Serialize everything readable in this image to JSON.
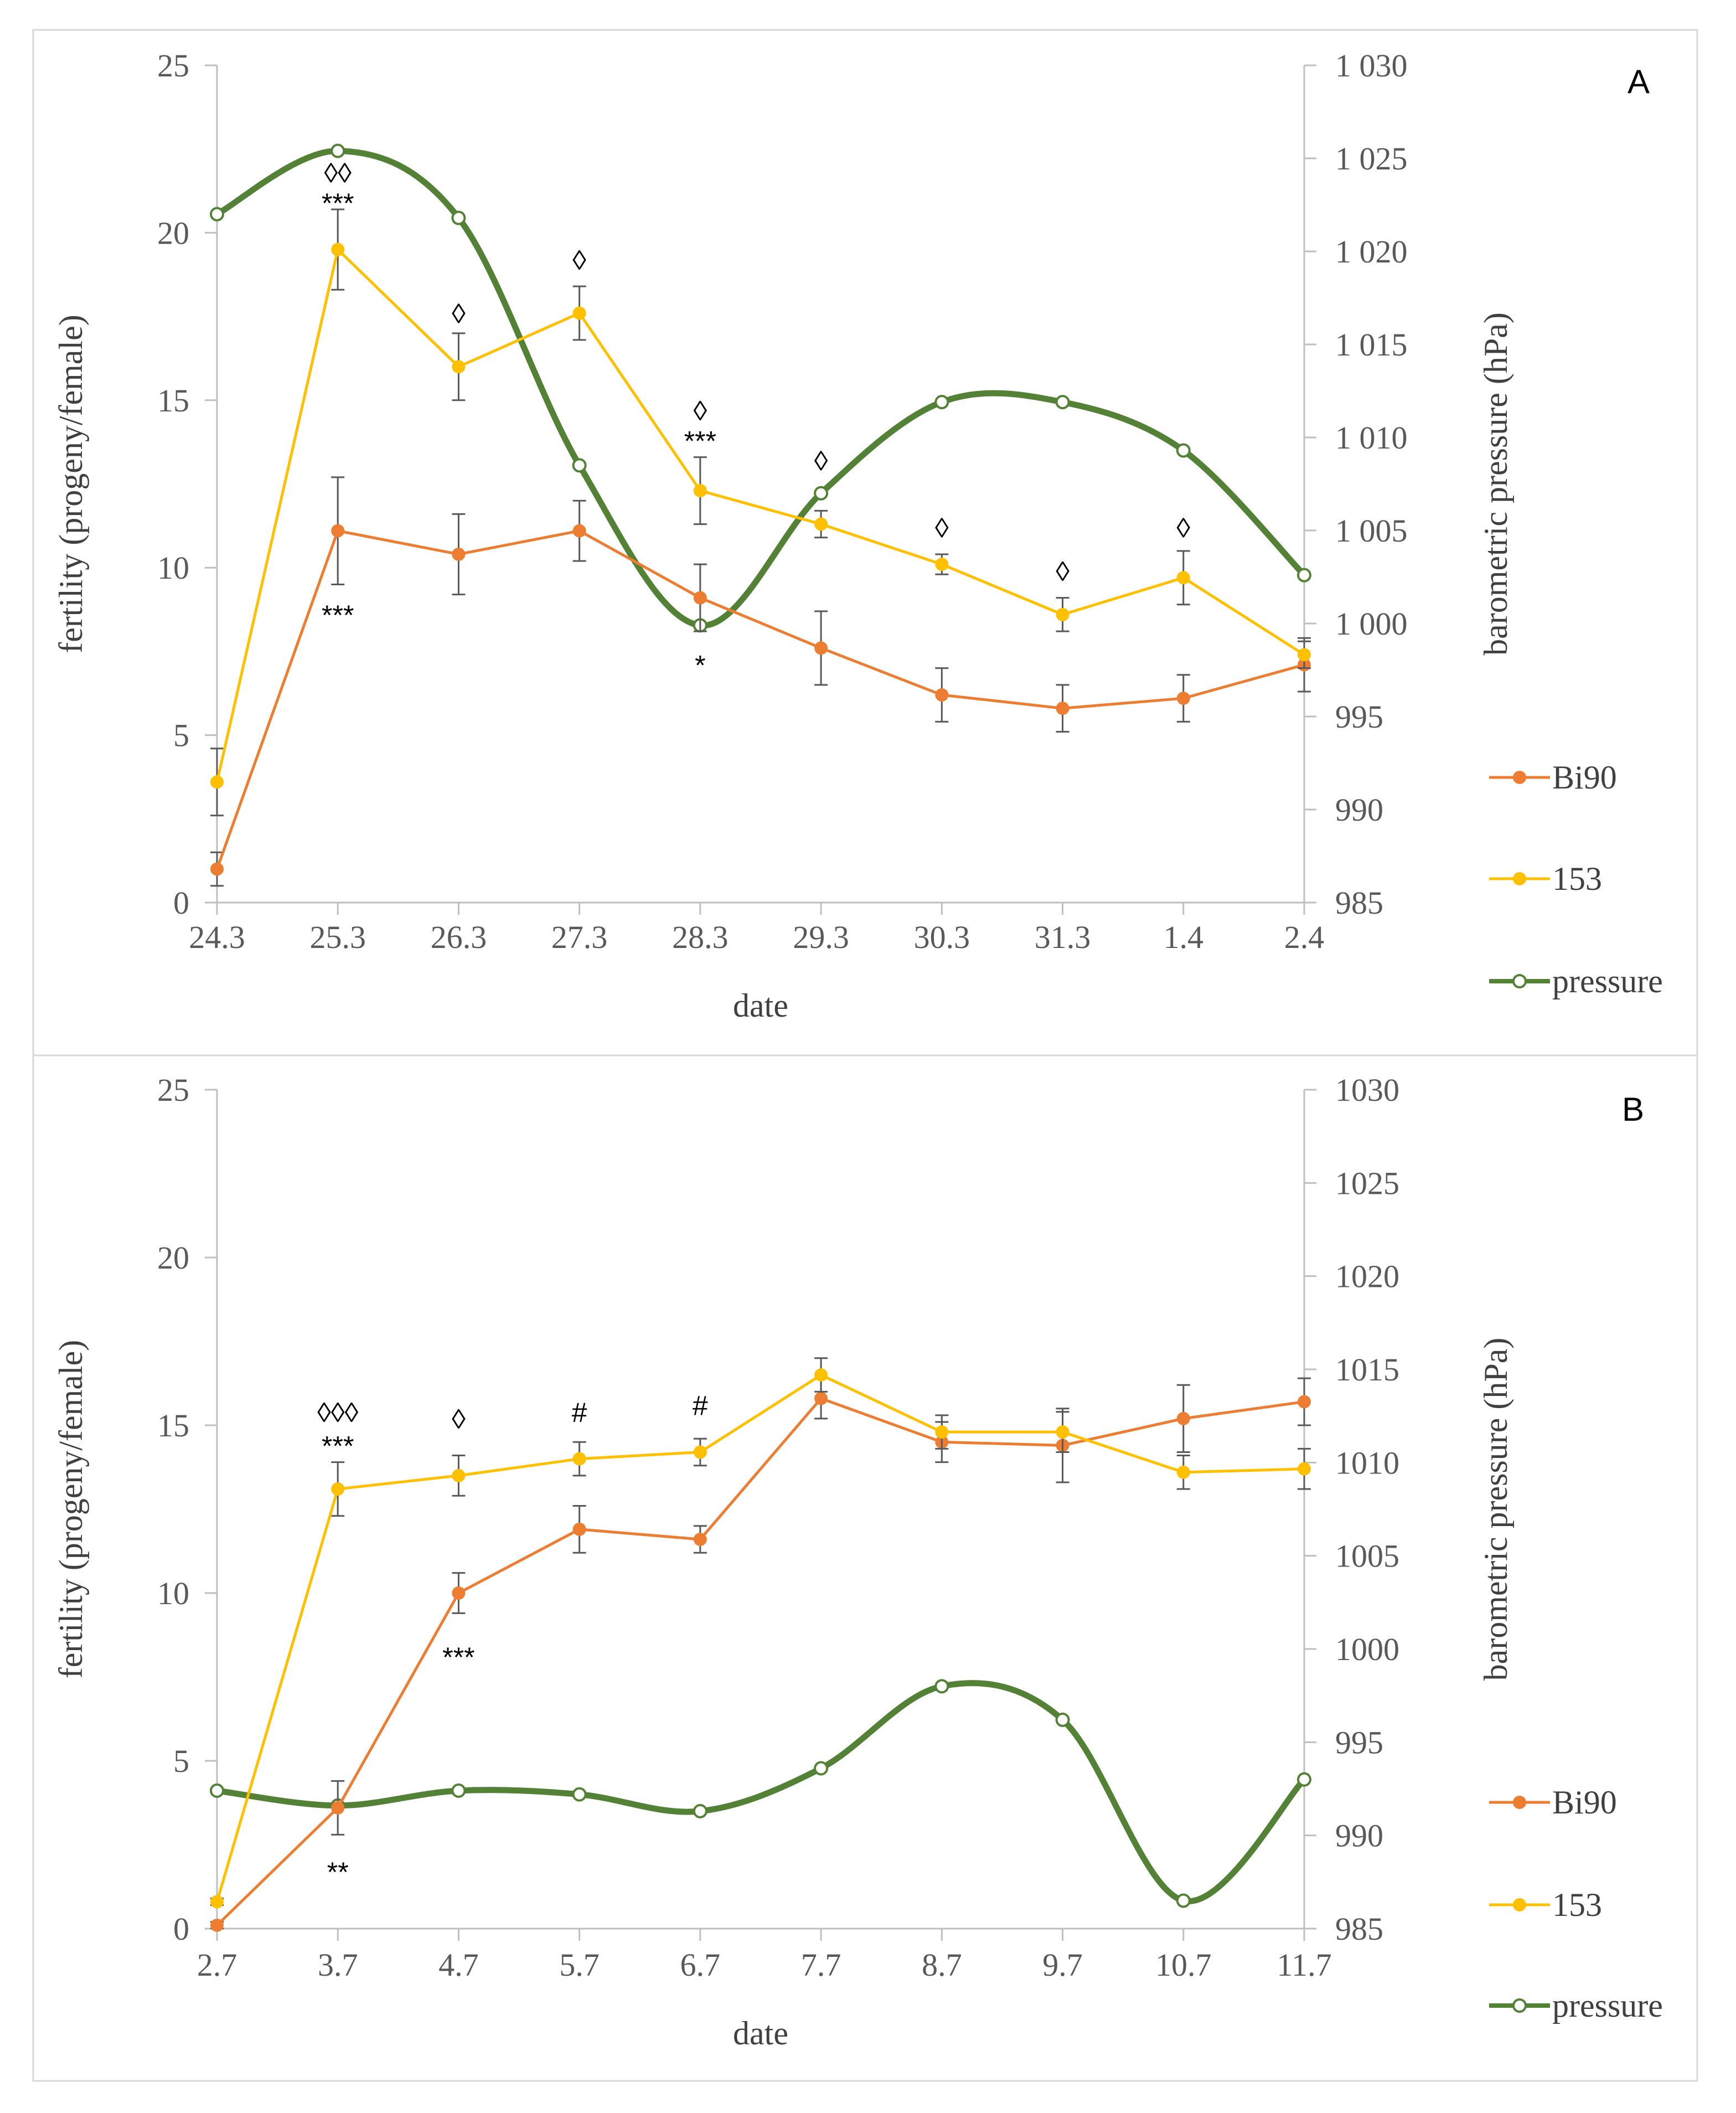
{
  "colors": {
    "bi90": "#ED7D31",
    "line153": "#FFC000",
    "pressure": "#538135",
    "axis": "#BFBFBF",
    "errbar": "#595959"
  },
  "chart_data": [
    {
      "type": "line",
      "panel_label": "A",
      "xlabel": "date",
      "ylabel": "fertility (progeny/female)",
      "ylabel2": "barometric  pressure (hPa)",
      "categories": [
        "24.3",
        "25.3",
        "26.3",
        "27.3",
        "28.3",
        "29.3",
        "30.3",
        "31.3",
        "1.4",
        "2.4"
      ],
      "ylim": [
        0,
        25
      ],
      "yticks": [
        "0",
        "5",
        "10",
        "15",
        "20",
        "25"
      ],
      "y2lim": [
        985,
        1030
      ],
      "y2ticks": [
        "985",
        "990",
        "995",
        "1 000",
        "1 005",
        "1 010",
        "1 015",
        "1 020",
        "1 025",
        "1 030"
      ],
      "legend_position": "right",
      "series": [
        {
          "name": "Bi90",
          "axis": "left",
          "values": [
            1.0,
            11.1,
            10.4,
            11.1,
            9.1,
            7.6,
            6.2,
            5.8,
            6.1,
            7.1
          ],
          "errors": [
            0.5,
            1.6,
            1.2,
            0.9,
            1.0,
            1.1,
            0.8,
            0.7,
            0.7,
            0.8
          ]
        },
        {
          "name": "153",
          "axis": "left",
          "values": [
            3.6,
            19.5,
            16.0,
            17.6,
            12.3,
            11.3,
            10.1,
            8.6,
            9.7,
            7.4
          ],
          "errors": [
            1.0,
            1.2,
            1.0,
            0.8,
            1.0,
            0.4,
            0.3,
            0.5,
            0.8,
            0.4
          ]
        },
        {
          "name": "pressure",
          "axis": "right",
          "smooth": true,
          "values": [
            1022.0,
            1025.4,
            1021.8,
            1008.5,
            999.9,
            1007.0,
            1011.9,
            1011.9,
            1009.3,
            1002.6
          ],
          "errors": []
        }
      ],
      "annotations": [
        {
          "text": "◊◊",
          "x": "25.3",
          "y": 21.8
        },
        {
          "text": "***",
          "x": "25.3",
          "y": 20.9
        },
        {
          "text": "***",
          "x": "25.3",
          "y": 8.6
        },
        {
          "text": "◊",
          "x": "26.3",
          "y": 17.6
        },
        {
          "text": "◊",
          "x": "27.3",
          "y": 19.2
        },
        {
          "text": "◊",
          "x": "28.3",
          "y": 14.7
        },
        {
          "text": "***",
          "x": "28.3",
          "y": 13.8
        },
        {
          "text": "*",
          "x": "28.3",
          "y": 7.1
        },
        {
          "text": "◊",
          "x": "29.3",
          "y": 13.2
        },
        {
          "text": "◊",
          "x": "30.3",
          "y": 11.2
        },
        {
          "text": "◊",
          "x": "31.3",
          "y": 9.9
        },
        {
          "text": "◊",
          "x": "1.4",
          "y": 11.2
        }
      ]
    },
    {
      "type": "line",
      "panel_label": "B",
      "xlabel": "date",
      "ylabel": "fertility (progeny/female)",
      "ylabel2": "barometric  pressure (hPa)",
      "categories": [
        "2.7",
        "3.7",
        "4.7",
        "5.7",
        "6.7",
        "7.7",
        "8.7",
        "9.7",
        "10.7",
        "11.7"
      ],
      "ylim": [
        0,
        25
      ],
      "yticks": [
        "0",
        "5",
        "10",
        "15",
        "20",
        "25"
      ],
      "y2lim": [
        985,
        1030
      ],
      "y2ticks": [
        "985",
        "990",
        "995",
        "1000",
        "1005",
        "1010",
        "1015",
        "1020",
        "1025",
        "1030"
      ],
      "legend_position": "right",
      "series": [
        {
          "name": "Bi90",
          "axis": "left",
          "values": [
            0.1,
            3.6,
            10.0,
            11.9,
            11.6,
            15.8,
            14.5,
            14.4,
            15.2,
            15.7
          ],
          "errors": [
            0.1,
            0.8,
            0.6,
            0.7,
            0.4,
            0.6,
            0.6,
            1.1,
            1.0,
            0.7
          ]
        },
        {
          "name": "153",
          "axis": "left",
          "values": [
            0.8,
            13.1,
            13.5,
            14.0,
            14.2,
            16.5,
            14.8,
            14.8,
            13.6,
            13.7
          ],
          "errors": [
            0.1,
            0.8,
            0.6,
            0.5,
            0.4,
            0.5,
            0.5,
            0.6,
            0.5,
            0.6
          ]
        },
        {
          "name": "pressure",
          "axis": "right",
          "smooth": true,
          "values": [
            992.4,
            991.6,
            992.4,
            992.2,
            991.3,
            993.6,
            998.0,
            996.2,
            986.5,
            993.0
          ],
          "errors": []
        }
      ],
      "annotations": [
        {
          "text": "◊◊◊",
          "x": "3.7",
          "y": 15.4
        },
        {
          "text": "***",
          "x": "3.7",
          "y": 14.4
        },
        {
          "text": "**",
          "x": "3.7",
          "y": 1.7
        },
        {
          "text": "◊",
          "x": "4.7",
          "y": 15.2
        },
        {
          "text": "***",
          "x": "4.7",
          "y": 8.1
        },
        {
          "text": "#",
          "x": "5.7",
          "y": 15.4
        },
        {
          "text": "#",
          "x": "6.7",
          "y": 15.6
        }
      ]
    }
  ]
}
